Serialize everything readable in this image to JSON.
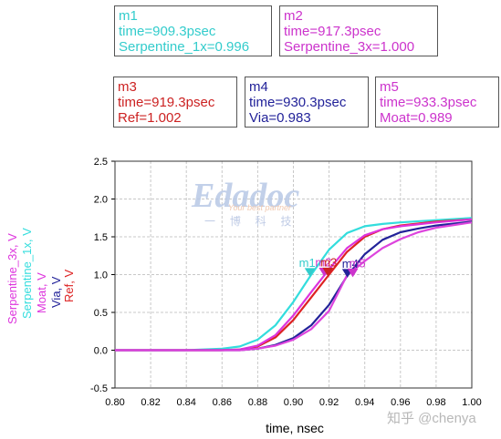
{
  "markers": [
    {
      "id": "m1",
      "time": "time=909.3psec",
      "value": "Serpentine_1x=0.996",
      "color": "#33cccc"
    },
    {
      "id": "m2",
      "time": "time=917.3psec",
      "value": "Serpentine_3x=1.000",
      "color": "#cc33cc"
    },
    {
      "id": "m3",
      "time": "time=919.3psec",
      "value": "Ref=1.002",
      "color": "#cc2222"
    },
    {
      "id": "m4",
      "time": "time=930.3psec",
      "value": "Via=0.983",
      "color": "#222299"
    },
    {
      "id": "m5",
      "time": "time=933.3psec",
      "value": "Moat=0.989",
      "color": "#cc33cc"
    }
  ],
  "watermark": {
    "brand": "Edadoc",
    "tagline": "Your best partner",
    "chinese": "一 博 科 技"
  },
  "credit": "知乎 @chenya",
  "chart_data": {
    "type": "line",
    "xlabel": "time, nsec",
    "xlim": [
      0.8,
      1.0
    ],
    "ylim": [
      -0.5,
      2.5
    ],
    "x_ticks": [
      "0.80",
      "0.82",
      "0.84",
      "0.86",
      "0.88",
      "0.90",
      "0.92",
      "0.94",
      "0.96",
      "0.98",
      "1.00"
    ],
    "y_ticks": [
      "-0.5",
      "0.0",
      "0.5",
      "1.0",
      "1.5",
      "2.0",
      "2.5"
    ],
    "grid": true,
    "legend": "left, rotated vertical",
    "legend_entries": [
      "Serpentine_3x, V",
      "Serpentine_1x, V",
      "Moat, V",
      "Via, V",
      "Ref, V"
    ],
    "series": [
      {
        "name": "Serpentine_1x, V",
        "color": "#33dddd",
        "x": [
          0.8,
          0.84,
          0.86,
          0.87,
          0.88,
          0.89,
          0.9,
          0.91,
          0.92,
          0.93,
          0.94,
          0.95,
          0.96,
          0.98,
          1.0
        ],
        "y": [
          0.0,
          0.0,
          0.02,
          0.05,
          0.14,
          0.33,
          0.64,
          1.0,
          1.33,
          1.55,
          1.64,
          1.67,
          1.69,
          1.72,
          1.75
        ]
      },
      {
        "name": "Ref, V",
        "color": "#dd2222",
        "x": [
          0.8,
          0.84,
          0.86,
          0.87,
          0.88,
          0.89,
          0.9,
          0.91,
          0.92,
          0.93,
          0.94,
          0.95,
          0.96,
          0.98,
          1.0
        ],
        "y": [
          0.0,
          0.0,
          0.0,
          0.01,
          0.05,
          0.17,
          0.4,
          0.7,
          1.0,
          1.3,
          1.5,
          1.6,
          1.65,
          1.7,
          1.73
        ]
      },
      {
        "name": "Serpentine_3x, V",
        "color": "#dd33dd",
        "x": [
          0.8,
          0.84,
          0.86,
          0.87,
          0.88,
          0.89,
          0.9,
          0.91,
          0.92,
          0.93,
          0.94,
          0.95,
          0.96,
          0.98,
          1.0
        ],
        "y": [
          0.0,
          0.0,
          0.0,
          0.01,
          0.06,
          0.2,
          0.46,
          0.77,
          1.07,
          1.35,
          1.52,
          1.6,
          1.64,
          1.69,
          1.73
        ]
      },
      {
        "name": "Via, V",
        "color": "#222299",
        "x": [
          0.8,
          0.84,
          0.86,
          0.87,
          0.88,
          0.89,
          0.9,
          0.91,
          0.92,
          0.93,
          0.94,
          0.95,
          0.96,
          0.97,
          0.98,
          1.0
        ],
        "y": [
          0.0,
          0.0,
          0.0,
          0.0,
          0.02,
          0.07,
          0.16,
          0.33,
          0.6,
          0.98,
          1.27,
          1.46,
          1.56,
          1.61,
          1.65,
          1.7
        ]
      },
      {
        "name": "Moat, V",
        "color": "#dd44dd",
        "x": [
          0.8,
          0.84,
          0.86,
          0.87,
          0.88,
          0.89,
          0.9,
          0.91,
          0.92,
          0.93,
          0.94,
          0.95,
          0.96,
          0.97,
          0.98,
          1.0
        ],
        "y": [
          0.0,
          0.0,
          0.0,
          0.0,
          0.02,
          0.06,
          0.14,
          0.28,
          0.52,
          0.99,
          1.18,
          1.35,
          1.47,
          1.56,
          1.62,
          1.69
        ]
      }
    ],
    "marker_points": [
      {
        "label": "m1",
        "x": 0.9093,
        "y": 0.996,
        "color": "#33cccc"
      },
      {
        "label": "m2",
        "x": 0.9173,
        "y": 1.0,
        "color": "#cc33cc"
      },
      {
        "label": "m3",
        "x": 0.9193,
        "y": 1.002,
        "color": "#cc2222"
      },
      {
        "label": "m4",
        "x": 0.9303,
        "y": 0.983,
        "color": "#222299"
      },
      {
        "label": "m5",
        "x": 0.9333,
        "y": 0.989,
        "color": "#cc33cc"
      }
    ]
  }
}
